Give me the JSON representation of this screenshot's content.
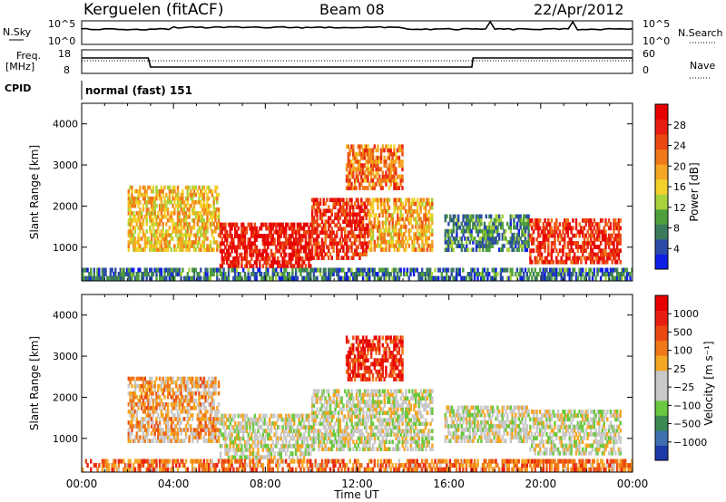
{
  "header": {
    "station": "Kerguelen (fitACF)",
    "beam": "Beam 08",
    "date": "22/Apr/2012"
  },
  "panels": {
    "nsky": {
      "left_label": "N.Sky",
      "right_label": "N.Search",
      "yticks_left": [
        "10^5",
        "10^0"
      ],
      "yticks_right": [
        "10^5",
        "10^0"
      ]
    },
    "freq": {
      "left_label_1": "Freq.",
      "left_label_2": "[MHz]",
      "right_label": "Nave",
      "yticks_left": [
        "18",
        "8"
      ],
      "yticks_right": [
        "60",
        "0"
      ]
    },
    "cpid": {
      "label": "CPID",
      "text": "normal (fast) 151"
    }
  },
  "chart_data": [
    {
      "type": "heatmap",
      "quantity": "Power",
      "ylabel": "Slant Range [km]",
      "xlabel": "",
      "xlim": [
        "00:00",
        "24:00"
      ],
      "ylim": [
        180,
        4500
      ],
      "yticks": [
        1000,
        2000,
        3000,
        4000
      ],
      "xticks": [
        "00:00",
        "04:00",
        "08:00",
        "12:00",
        "16:00",
        "20:00",
        "00:00"
      ],
      "colorbar": {
        "label": "Power [dB]",
        "ticks": [
          "4",
          "8",
          "12",
          "16",
          "20",
          "24",
          "28"
        ],
        "colors": [
          "#0f1ee6",
          "#2c4aa8",
          "#3c7a5c",
          "#4fa03c",
          "#a8d23a",
          "#f2d22a",
          "#f5a623",
          "#f07818",
          "#ec4812",
          "#e81e10",
          "#e80000"
        ]
      },
      "regions": [
        {
          "t0": 2.0,
          "t1": 6.0,
          "r0": 900,
          "r1": 2500,
          "level": 0.55
        },
        {
          "t0": 6.0,
          "t1": 10.0,
          "r0": 500,
          "r1": 1600,
          "level": 0.9
        },
        {
          "t0": 10.0,
          "t1": 12.5,
          "r0": 700,
          "r1": 2200,
          "level": 0.85
        },
        {
          "t0": 12.5,
          "t1": 15.3,
          "r0": 900,
          "r1": 2200,
          "level": 0.6
        },
        {
          "t0": 11.5,
          "t1": 14.0,
          "r0": 2400,
          "r1": 3500,
          "level": 0.7
        },
        {
          "t0": 15.8,
          "t1": 19.5,
          "r0": 900,
          "r1": 1800,
          "level": 0.25
        },
        {
          "t0": 19.5,
          "t1": 23.5,
          "r0": 600,
          "r1": 1700,
          "level": 0.85
        },
        {
          "t0": 0.0,
          "t1": 24.0,
          "r0": 200,
          "r1": 500,
          "level": 0.2
        }
      ]
    },
    {
      "type": "heatmap",
      "quantity": "Velocity",
      "ylabel": "Slant Range [km]",
      "xlabel": "Time UT",
      "xlim": [
        "00:00",
        "24:00"
      ],
      "ylim": [
        180,
        4500
      ],
      "yticks": [
        1000,
        2000,
        3000,
        4000
      ],
      "xticks": [
        "00:00",
        "04:00",
        "08:00",
        "12:00",
        "16:00",
        "20:00",
        "00:00"
      ],
      "colorbar": {
        "label": "Velocity [m s⁻¹]",
        "ticks": [
          "1000",
          "500",
          "100",
          "25",
          "−25",
          "−100",
          "−500",
          "−1000"
        ],
        "colors": [
          "#1c3aa8",
          "#3f6fb0",
          "#3a8a52",
          "#6ac83e",
          "#c8c8c8",
          "#c8c8c8",
          "#f5a623",
          "#f07818",
          "#ec4812",
          "#e81e10",
          "#e80000"
        ]
      },
      "regions": [
        {
          "t0": 2.0,
          "t1": 6.0,
          "r0": 900,
          "r1": 2500,
          "level": 0.6
        },
        {
          "t0": 6.0,
          "t1": 10.0,
          "r0": 500,
          "r1": 1600,
          "level": 0.45
        },
        {
          "t0": 10.0,
          "t1": 15.3,
          "r0": 700,
          "r1": 2200,
          "level": 0.45
        },
        {
          "t0": 11.5,
          "t1": 14.0,
          "r0": 2400,
          "r1": 3500,
          "level": 0.85
        },
        {
          "t0": 15.8,
          "t1": 19.5,
          "r0": 900,
          "r1": 1800,
          "level": 0.45
        },
        {
          "t0": 19.5,
          "t1": 23.5,
          "r0": 600,
          "r1": 1700,
          "level": 0.45
        },
        {
          "t0": 0.0,
          "t1": 24.0,
          "r0": 200,
          "r1": 500,
          "level": 0.7
        }
      ]
    }
  ]
}
